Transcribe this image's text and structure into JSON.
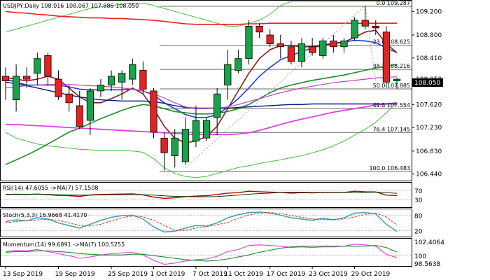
{
  "colors": {
    "bull": "#16a34a",
    "bear": "#e52222",
    "candle_outline": "#000000",
    "ma_blue": "#1f3fd6",
    "ma_maroon": "#8b1a1a",
    "ma_green": "#1f8a2b",
    "ma_pink": "#e040e0",
    "ma_navy": "#0a1a7a",
    "ma_red": "#e52222",
    "ma_violet": "#c040c0",
    "bb": "#3fbf3f",
    "fib_line": "#6b6b6b",
    "trend_dash": "#b0b0b0",
    "rsi_red": "#c00000",
    "rsi_dark": "#004000",
    "stoch_main": "#3fa8b8",
    "stoch_signal": "#e52222",
    "mom_main": "#1f8a2b",
    "mom_signal": "#e040e0"
  },
  "header": "USDJPY,Daily  108.016 108.067 107.886 108.050",
  "price_axis": {
    "labels": [
      "109.200",
      "108.800",
      "108.410",
      "108.050",
      "107.620",
      "107.230",
      "106.830",
      "106.440"
    ]
  },
  "current_price_label": "108.050",
  "fib_levels": [
    {
      "label": "0.0 109.287",
      "value": 109.287
    },
    {
      "label": "23.6 108.625",
      "value": 108.625
    },
    {
      "label": "38.2 108.216",
      "value": 108.216
    },
    {
      "label": "50.0 107.885",
      "value": 107.885
    },
    {
      "label": "61.8 107.554",
      "value": 107.554
    },
    {
      "label": "76.4 107.145",
      "value": 107.145
    },
    {
      "label": "100.0 106.483",
      "value": 106.483
    }
  ],
  "rsi": {
    "label": "RSI(14) 47.6055  ->MA(7) 57.1508",
    "axis": [
      "70",
      "30"
    ]
  },
  "stoch": {
    "label": "Stoch(5,3,3) 16.9668 41.4170",
    "axis": [
      "80",
      "20"
    ]
  },
  "momentum": {
    "label": "Momentum(14) 99.6891  ->MA(7) 100.5255",
    "axis": [
      "102.4064",
      "100",
      "98.5638"
    ]
  },
  "date_axis": [
    "13 Sep 2019",
    "19 Sep 2019",
    "25 Sep 2019",
    "1 Oct 2019",
    "7 Oct 2019",
    "11 Oct 2019",
    "17 Oct 2019",
    "23 Oct 2019",
    "29 Oct 2019"
  ],
  "chart_data": {
    "type": "candlestick",
    "symbol": "USDJPY",
    "timeframe": "Daily",
    "ylim": [
      106.3,
      109.45
    ],
    "candles": [
      {
        "o": 108.1,
        "h": 108.25,
        "l": 107.7,
        "c": 108.02
      },
      {
        "o": 107.7,
        "h": 108.3,
        "l": 107.5,
        "c": 108.1
      },
      {
        "o": 108.1,
        "h": 108.25,
        "l": 107.9,
        "c": 108.05
      },
      {
        "o": 108.15,
        "h": 108.5,
        "l": 107.95,
        "c": 108.4
      },
      {
        "o": 108.45,
        "h": 108.5,
        "l": 107.95,
        "c": 108.1
      },
      {
        "o": 108.05,
        "h": 108.2,
        "l": 107.7,
        "c": 107.75
      },
      {
        "o": 107.8,
        "h": 107.95,
        "l": 107.5,
        "c": 107.65
      },
      {
        "o": 107.6,
        "h": 107.85,
        "l": 107.2,
        "c": 107.25
      },
      {
        "o": 107.35,
        "h": 107.9,
        "l": 107.1,
        "c": 107.85
      },
      {
        "o": 107.85,
        "h": 108.05,
        "l": 107.75,
        "c": 107.95
      },
      {
        "o": 107.95,
        "h": 108.2,
        "l": 107.85,
        "c": 108.1
      },
      {
        "o": 108.0,
        "h": 108.2,
        "l": 107.7,
        "c": 108.15
      },
      {
        "o": 108.05,
        "h": 108.4,
        "l": 107.95,
        "c": 108.3
      },
      {
        "o": 108.2,
        "h": 108.35,
        "l": 107.8,
        "c": 107.88
      },
      {
        "o": 107.85,
        "h": 107.9,
        "l": 107.05,
        "c": 107.15
      },
      {
        "o": 107.05,
        "h": 107.15,
        "l": 106.5,
        "c": 106.8
      },
      {
        "o": 106.75,
        "h": 107.2,
        "l": 106.55,
        "c": 107.05
      },
      {
        "o": 106.65,
        "h": 107.4,
        "l": 106.6,
        "c": 107.2
      },
      {
        "o": 107.0,
        "h": 107.6,
        "l": 106.9,
        "c": 107.35
      },
      {
        "o": 107.05,
        "h": 107.4,
        "l": 107.0,
        "c": 107.35
      },
      {
        "o": 107.4,
        "h": 107.9,
        "l": 107.1,
        "c": 107.8
      },
      {
        "o": 107.95,
        "h": 108.55,
        "l": 107.7,
        "c": 108.3
      },
      {
        "o": 108.2,
        "h": 108.55,
        "l": 108.15,
        "c": 108.4
      },
      {
        "o": 108.4,
        "h": 109.05,
        "l": 108.3,
        "c": 108.95
      },
      {
        "o": 108.95,
        "h": 109.0,
        "l": 108.75,
        "c": 108.85
      },
      {
        "o": 108.8,
        "h": 108.9,
        "l": 108.6,
        "c": 108.65
      },
      {
        "o": 108.65,
        "h": 108.8,
        "l": 108.4,
        "c": 108.6
      },
      {
        "o": 108.6,
        "h": 108.7,
        "l": 108.3,
        "c": 108.35
      },
      {
        "o": 108.35,
        "h": 108.75,
        "l": 108.25,
        "c": 108.65
      },
      {
        "o": 108.6,
        "h": 108.75,
        "l": 108.45,
        "c": 108.5
      },
      {
        "o": 108.45,
        "h": 108.75,
        "l": 108.4,
        "c": 108.7
      },
      {
        "o": 108.7,
        "h": 108.8,
        "l": 108.5,
        "c": 108.6
      },
      {
        "o": 108.6,
        "h": 108.75,
        "l": 108.5,
        "c": 108.7
      },
      {
        "o": 108.75,
        "h": 109.1,
        "l": 108.7,
        "c": 109.05
      },
      {
        "o": 109.05,
        "h": 109.3,
        "l": 108.9,
        "c": 108.95
      },
      {
        "o": 108.95,
        "h": 109.05,
        "l": 108.8,
        "c": 108.92
      },
      {
        "o": 108.85,
        "h": 108.95,
        "l": 107.9,
        "c": 108.0
      },
      {
        "o": 108.02,
        "h": 108.07,
        "l": 107.89,
        "c": 108.05
      }
    ],
    "ma_series": [
      {
        "key": "blue",
        "values": [
          108.05,
          108.0,
          107.95,
          107.95,
          107.95,
          107.95,
          107.92,
          107.88,
          107.87,
          107.87,
          107.87,
          107.87,
          107.88,
          107.85,
          107.78,
          107.65,
          107.55,
          107.45,
          107.4,
          107.4,
          107.45,
          107.57,
          107.72,
          107.9,
          108.1,
          108.25,
          108.38,
          108.45,
          108.52,
          108.58,
          108.63,
          108.66,
          108.68,
          108.71,
          108.7,
          108.67,
          108.58,
          108.5
        ]
      },
      {
        "key": "maroon",
        "values": [
          108.08,
          108.05,
          108.02,
          108.05,
          108.1,
          108.05,
          107.9,
          107.75,
          107.65,
          107.65,
          107.72,
          107.8,
          107.9,
          107.8,
          107.55,
          107.25,
          107.05,
          106.97,
          107.0,
          107.08,
          107.25,
          107.55,
          107.85,
          108.15,
          108.4,
          108.55,
          108.62,
          108.62,
          108.6,
          108.6,
          108.62,
          108.65,
          108.68,
          108.76,
          108.85,
          108.88,
          108.65,
          108.5
        ]
      },
      {
        "key": "green",
        "values": [
          106.6,
          106.68,
          106.76,
          106.85,
          106.95,
          107.05,
          107.15,
          107.22,
          107.3,
          107.38,
          107.45,
          107.52,
          107.58,
          107.62,
          107.6,
          107.55,
          107.5,
          107.48,
          107.46,
          107.46,
          107.47,
          107.5,
          107.55,
          107.62,
          107.72,
          107.82,
          107.9,
          107.95,
          107.99,
          108.03,
          108.06,
          108.09,
          108.12,
          108.16,
          108.2,
          108.24,
          108.27,
          108.3
        ]
      },
      {
        "key": "pink",
        "values": [
          107.28,
          107.28,
          107.27,
          107.26,
          107.25,
          107.24,
          107.23,
          107.22,
          107.21,
          107.2,
          107.19,
          107.18,
          107.17,
          107.16,
          107.15,
          107.14,
          107.13,
          107.12,
          107.11,
          107.11,
          107.11,
          107.11,
          107.12,
          107.14,
          107.18,
          107.23,
          107.28,
          107.33,
          107.37,
          107.41,
          107.45,
          107.49,
          107.52,
          107.55,
          107.58,
          107.61,
          107.63,
          107.65
        ]
      },
      {
        "key": "navy",
        "values": [
          108.0,
          107.97,
          107.94,
          107.9,
          107.86,
          107.82,
          107.78,
          107.75,
          107.72,
          107.7,
          107.69,
          107.68,
          107.68,
          107.68,
          107.67,
          107.64,
          107.6,
          107.57,
          107.56,
          107.56,
          107.56,
          107.56,
          107.57,
          107.58,
          107.59,
          107.6,
          107.61,
          107.62,
          107.62,
          107.63,
          107.63,
          107.63,
          107.63,
          107.63,
          107.63,
          107.63,
          107.63,
          107.63
        ]
      },
      {
        "key": "red",
        "values": [
          109.2,
          109.18,
          109.17,
          109.15,
          109.14,
          109.12,
          109.11,
          109.1,
          109.09,
          109.09,
          109.08,
          109.08,
          109.07,
          109.06,
          109.05,
          109.03,
          109.01,
          108.99,
          108.98,
          108.98,
          108.98,
          108.98,
          108.98,
          108.99,
          108.99,
          109.0,
          109.0,
          109.0,
          109.0,
          109.0,
          109.0,
          109.0,
          109.0,
          109.0,
          109.0,
          109.0,
          109.0,
          109.0
        ]
      },
      {
        "key": "violet",
        "values": [
          107.9,
          107.92,
          107.94,
          107.95,
          107.96,
          107.96,
          107.96,
          107.95,
          107.94,
          107.93,
          107.92,
          107.9,
          107.88,
          107.85,
          107.8,
          107.73,
          107.65,
          107.58,
          107.55,
          107.55,
          107.56,
          107.58,
          107.62,
          107.67,
          107.72,
          107.77,
          107.82,
          107.86,
          107.9,
          107.93,
          107.96,
          107.99,
          108.01,
          108.03,
          108.05,
          108.07,
          108.08,
          108.09
        ]
      }
    ],
    "bb_upper": [
      108.85,
      108.9,
      108.95,
      109.0,
      109.05,
      109.1,
      109.15,
      109.2,
      109.25,
      109.28,
      109.3,
      109.32,
      109.34,
      109.34,
      109.3,
      109.25,
      109.2,
      109.15,
      109.1,
      109.05,
      109.0,
      108.95,
      108.95,
      109.0,
      109.05,
      109.15,
      109.3,
      109.45,
      109.6,
      109.75,
      109.85,
      109.95,
      110.05,
      110.15,
      110.25,
      110.3,
      110.35,
      110.4
    ],
    "bb_lower": [
      107.15,
      107.05,
      107.0,
      106.95,
      106.92,
      106.9,
      106.88,
      106.86,
      106.85,
      106.84,
      106.84,
      106.84,
      106.83,
      106.81,
      106.7,
      106.55,
      106.45,
      106.4,
      106.38,
      106.4,
      106.45,
      106.5,
      106.55,
      106.58,
      106.62,
      106.65,
      106.68,
      106.72,
      106.75,
      106.8,
      106.85,
      106.92,
      107.0,
      107.1,
      107.2,
      107.32,
      107.48,
      107.65
    ],
    "rsi": [
      52,
      53,
      52,
      54,
      51,
      48,
      47,
      44,
      50,
      52,
      53,
      54,
      55,
      50,
      41,
      35,
      38,
      42,
      45,
      47,
      52,
      58,
      60,
      66,
      64,
      62,
      61,
      58,
      60,
      59,
      61,
      60,
      61,
      66,
      64,
      63,
      49,
      47.6
    ],
    "rsi_ma": [
      53,
      53,
      53,
      53,
      52,
      51,
      50,
      49,
      49,
      50,
      51,
      51,
      52,
      51,
      49,
      46,
      44,
      43,
      42,
      42,
      43,
      46,
      49,
      53,
      56,
      58,
      61,
      62,
      62,
      61,
      61,
      61,
      61,
      61,
      61,
      62,
      60,
      57.15
    ],
    "stoch_main": [
      55,
      62,
      58,
      70,
      65,
      50,
      40,
      30,
      45,
      60,
      72,
      78,
      80,
      65,
      35,
      15,
      18,
      30,
      40,
      38,
      50,
      70,
      82,
      90,
      92,
      88,
      80,
      70,
      65,
      60,
      68,
      62,
      70,
      88,
      90,
      85,
      45,
      16.97
    ],
    "stoch_signal": [
      50,
      56,
      58,
      62,
      64,
      60,
      50,
      40,
      38,
      45,
      58,
      70,
      77,
      74,
      60,
      40,
      22,
      21,
      30,
      36,
      43,
      52,
      68,
      81,
      88,
      90,
      87,
      79,
      72,
      65,
      64,
      63,
      66,
      73,
      83,
      88,
      73,
      41.42
    ],
    "momentum": [
      100.6,
      100.8,
      100.7,
      100.9,
      100.6,
      100.3,
      100.0,
      99.6,
      99.8,
      100.1,
      100.3,
      100.4,
      100.5,
      100.1,
      99.3,
      98.7,
      98.9,
      99.2,
      99.4,
      99.5,
      99.9,
      100.6,
      100.9,
      101.5,
      101.6,
      101.5,
      101.4,
      101.2,
      101.3,
      101.2,
      101.3,
      101.3,
      101.4,
      101.7,
      101.6,
      101.4,
      100.2,
      99.69
    ],
    "momentum_ma": [
      100.5,
      100.6,
      100.6,
      100.7,
      100.7,
      100.6,
      100.5,
      100.3,
      100.2,
      100.1,
      100.1,
      100.1,
      100.2,
      100.2,
      100.0,
      99.8,
      99.6,
      99.4,
      99.3,
      99.2,
      99.3,
      99.5,
      99.8,
      100.1,
      100.5,
      100.8,
      101.1,
      101.3,
      101.4,
      101.4,
      101.4,
      101.4,
      101.4,
      101.4,
      101.4,
      101.5,
      101.2,
      100.53
    ]
  }
}
